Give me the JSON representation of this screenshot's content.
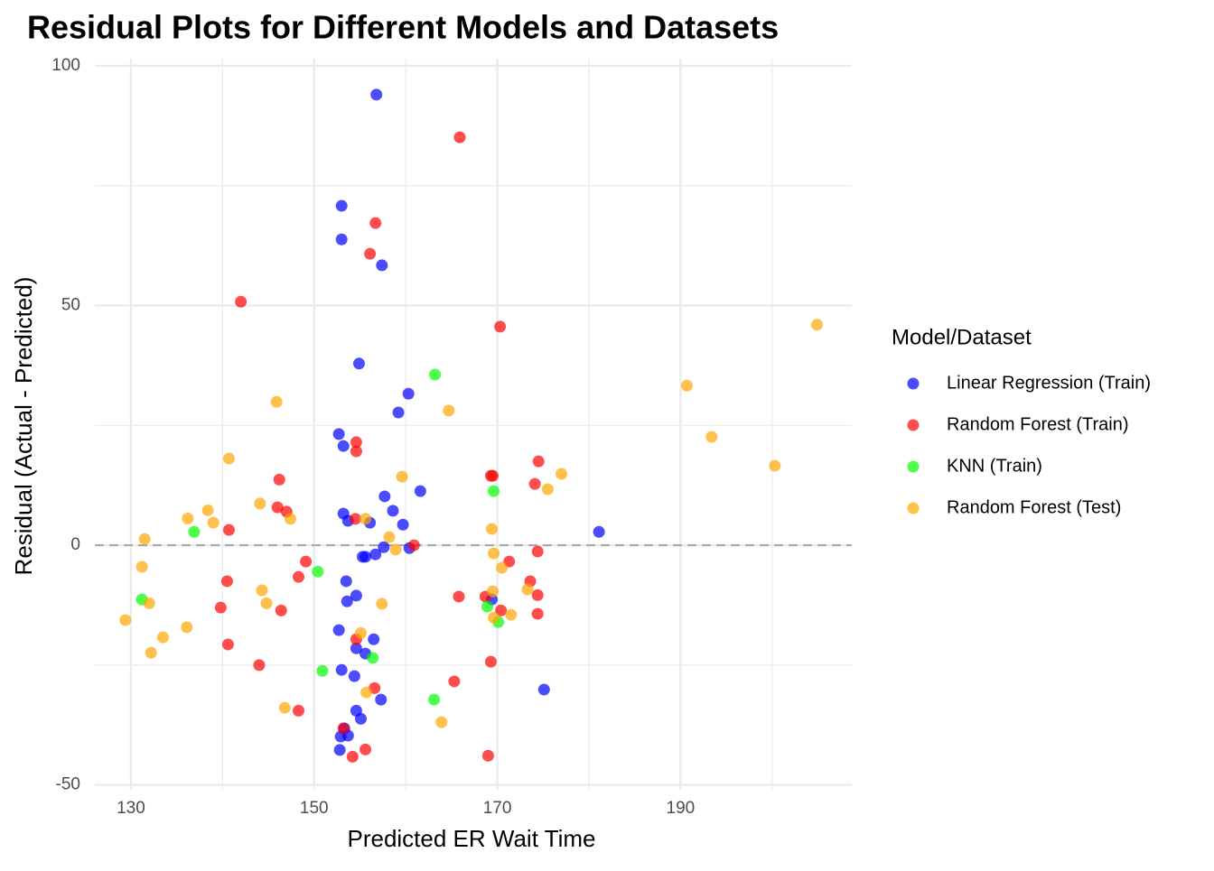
{
  "chart_data": {
    "type": "scatter",
    "title": "Residual Plots for Different Models and Datasets",
    "x_label": "Predicted ER Wait Time",
    "y_label": "Residual (Actual - Predicted)",
    "legend_title": "Model/Dataset",
    "legend_position": "right",
    "grid": true,
    "reference_line": 0,
    "xlim": [
      126.06,
      208.7
    ],
    "xticks": [
      130,
      150,
      170,
      190
    ],
    "ylim": [
      -51,
      101.5
    ],
    "yticks": [
      -50,
      0,
      50,
      100
    ],
    "series": [
      {
        "name": "Linear Regression (Train)",
        "color": "#0000ff",
        "x": [
          156.8,
          153.0,
          153.0,
          157.4,
          154.9,
          160.3,
          159.2,
          152.7,
          153.2,
          161.6,
          157.7,
          158.6,
          153.2,
          159.7,
          153.7,
          156.1,
          181.1,
          157.6,
          160.4,
          156.7,
          155.3,
          155.6,
          169.4,
          153.5,
          154.6,
          153.6,
          152.7,
          156.5,
          154.6,
          155.6,
          153.0,
          154.4,
          175.1,
          157.3,
          154.6,
          155.1,
          153.3,
          153.7,
          152.9,
          152.8
        ],
        "values": [
          94.0,
          70.8,
          63.8,
          58.4,
          37.9,
          31.6,
          27.7,
          23.2,
          20.7,
          11.3,
          10.2,
          7.2,
          6.6,
          4.3,
          5.1,
          4.7,
          2.8,
          -0.4,
          -0.6,
          -1.9,
          -2.4,
          -2.4,
          -11.3,
          -7.5,
          -10.5,
          -11.7,
          -17.7,
          -19.6,
          -21.5,
          -22.6,
          -26.0,
          -27.3,
          -30.1,
          -32.2,
          -34.5,
          -36.2,
          -38.2,
          -39.7,
          -39.9,
          -42.7
        ]
      },
      {
        "name": "Random Forest (Train)",
        "color": "#ff0000",
        "x": [
          165.9,
          156.7,
          156.1,
          142.0,
          170.3,
          154.6,
          154.6,
          174.5,
          169.3,
          169.5,
          174.1,
          146.2,
          146.0,
          147.0,
          154.5,
          140.7,
          160.9,
          174.4,
          171.3,
          149.1,
          148.3,
          140.5,
          173.6,
          174.4,
          165.8,
          168.7,
          139.8,
          170.4,
          146.4,
          174.4,
          140.6,
          154.6,
          144.0,
          169.3,
          165.3,
          156.6,
          148.3,
          153.2,
          155.6,
          154.2,
          169.0
        ],
        "values": [
          85.1,
          67.2,
          60.8,
          50.8,
          45.6,
          21.5,
          19.6,
          17.5,
          14.5,
          14.5,
          12.8,
          13.7,
          7.9,
          7.0,
          5.5,
          3.2,
          0.0,
          -1.3,
          -3.4,
          -3.4,
          -6.6,
          -7.5,
          -7.5,
          -10.4,
          -10.7,
          -10.7,
          -13.0,
          -13.6,
          -13.6,
          -14.3,
          -20.7,
          -19.6,
          -25.0,
          -24.3,
          -28.4,
          -29.8,
          -34.5,
          -38.2,
          -42.6,
          -44.1,
          -43.9
        ]
      },
      {
        "name": "KNN (Train)",
        "color": "#00ff00",
        "x": [
          163.2,
          169.6,
          136.9,
          150.4,
          131.2,
          168.9,
          170.1,
          156.4,
          150.9,
          163.1
        ],
        "values": [
          35.6,
          11.3,
          2.8,
          -5.5,
          -11.3,
          -12.8,
          -16.0,
          -23.5,
          -26.2,
          -32.2
        ]
      },
      {
        "name": "Random Forest (Test)",
        "color": "#ffa500",
        "x": [
          204.9,
          190.7,
          193.4,
          200.3,
          145.9,
          164.7,
          140.7,
          177.0,
          159.6,
          175.5,
          144.1,
          138.4,
          136.2,
          139.0,
          147.4,
          155.6,
          169.4,
          131.5,
          158.2,
          169.6,
          158.9,
          131.2,
          170.5,
          144.3,
          169.5,
          173.3,
          144.8,
          132.0,
          157.4,
          171.5,
          169.6,
          129.4,
          136.1,
          155.1,
          133.5,
          132.2,
          155.7,
          146.8,
          163.9
        ],
        "values": [
          46.0,
          33.3,
          22.6,
          16.6,
          29.9,
          28.1,
          18.1,
          14.9,
          14.3,
          11.7,
          8.7,
          7.3,
          5.6,
          4.7,
          5.5,
          5.5,
          3.4,
          1.3,
          1.7,
          -1.7,
          -0.9,
          -4.5,
          -4.7,
          -9.4,
          -9.6,
          -9.2,
          -12.1,
          -12.1,
          -12.2,
          -14.5,
          -15.1,
          -15.6,
          -17.1,
          -18.3,
          -19.2,
          -22.4,
          -30.7,
          -33.9,
          -36.9
        ]
      }
    ]
  }
}
